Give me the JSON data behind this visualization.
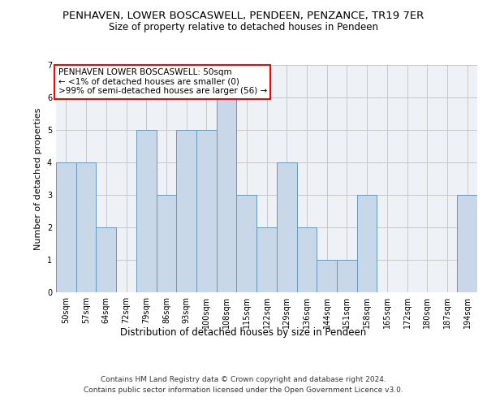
{
  "title": "PENHAVEN, LOWER BOSCASWELL, PENDEEN, PENZANCE, TR19 7ER",
  "subtitle": "Size of property relative to detached houses in Pendeen",
  "xlabel": "Distribution of detached houses by size in Pendeen",
  "ylabel": "Number of detached properties",
  "categories": [
    "50sqm",
    "57sqm",
    "64sqm",
    "72sqm",
    "79sqm",
    "86sqm",
    "93sqm",
    "100sqm",
    "108sqm",
    "115sqm",
    "122sqm",
    "129sqm",
    "136sqm",
    "144sqm",
    "151sqm",
    "158sqm",
    "165sqm",
    "172sqm",
    "180sqm",
    "187sqm",
    "194sqm"
  ],
  "values": [
    4,
    4,
    2,
    0,
    5,
    3,
    5,
    5,
    6,
    3,
    2,
    4,
    2,
    1,
    1,
    3,
    0,
    0,
    0,
    0,
    3
  ],
  "bar_color": "#c8d8e8",
  "bar_edge_color": "#6699bb",
  "ylim": [
    0,
    7
  ],
  "yticks": [
    0,
    1,
    2,
    3,
    4,
    5,
    6,
    7
  ],
  "annotation_title": "PENHAVEN LOWER BOSCASWELL: 50sqm",
  "annotation_line1": "← <1% of detached houses are smaller (0)",
  "annotation_line2": ">99% of semi-detached houses are larger (56) →",
  "footer_line1": "Contains HM Land Registry data © Crown copyright and database right 2024.",
  "footer_line2": "Contains public sector information licensed under the Open Government Licence v3.0.",
  "bg_color": "#eef2f7",
  "grid_color": "#c8c8c8",
  "title_fontsize": 9.5,
  "subtitle_fontsize": 8.5,
  "xlabel_fontsize": 8.5,
  "ylabel_fontsize": 8.0,
  "tick_fontsize": 7.0,
  "annot_fontsize": 7.5,
  "footer_fontsize": 6.5
}
